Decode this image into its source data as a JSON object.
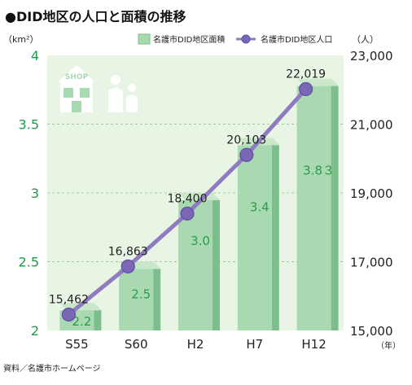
{
  "title": "●DID地区の人口と面積の推移",
  "source": "資料／名護市ホームページ",
  "units": {
    "left": "（km²）",
    "right": "（人）",
    "x": "（年）"
  },
  "legend": {
    "area": "名護市DID地区面積",
    "population": "名護市DID地区人口"
  },
  "icon_text": "SHOP",
  "colors": {
    "panel": "#e9f5e4",
    "bar_front": "#a9d9b0",
    "bar_side": "#7dbf8c",
    "bar_top": "#c8e8c9",
    "line": "#8f7cc0",
    "marker": "#7a68b6",
    "area_label": "#2e9a4a",
    "left_tick": "#1f9a48"
  },
  "chart_data": {
    "type": "bar",
    "categories": [
      "S55",
      "S60",
      "H2",
      "H7",
      "H12"
    ],
    "series": [
      {
        "name": "名護市DID地区面積",
        "axis": "left",
        "values": [
          2.2,
          2.5,
          3.0,
          3.4,
          3.83
        ],
        "labels": [
          "2.2",
          "2.5",
          "3.0",
          "3.4",
          "3.8３"
        ]
      },
      {
        "name": "名護市DID地区人口",
        "type": "line",
        "axis": "right",
        "values": [
          15462,
          16863,
          18400,
          20103,
          22019
        ],
        "labels": [
          "15,462",
          "16,863",
          "18,400",
          "20,103",
          "22,019"
        ]
      }
    ],
    "y_left": {
      "min": 2,
      "max": 4,
      "ticks": [
        "2",
        "2.5",
        "3",
        "3.5",
        "4"
      ]
    },
    "y_right": {
      "min": 15000,
      "max": 23000,
      "ticks": [
        "15,000",
        "17,000",
        "19,000",
        "21,000",
        "23,000"
      ]
    },
    "grid": true,
    "legend_position": "top-right"
  }
}
